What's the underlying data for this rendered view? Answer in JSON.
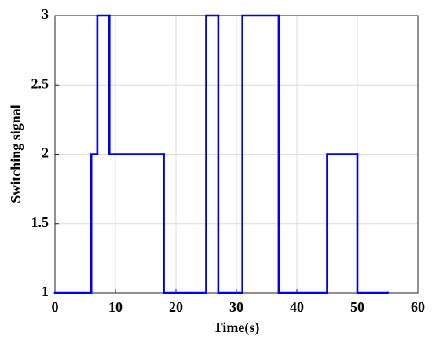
{
  "chart_data": {
    "type": "line",
    "step": "post",
    "xlabel": "Time(s)",
    "ylabel": "Switching signal",
    "x": [
      0,
      6,
      7,
      9,
      18,
      25,
      27,
      31,
      37,
      45,
      50,
      55
    ],
    "series": [
      {
        "color": "#0000ee",
        "values": [
          1,
          2,
          3,
          2,
          1,
          3,
          1,
          3,
          1,
          2,
          1,
          1
        ]
      }
    ],
    "xlim": [
      0,
      60
    ],
    "xticks": [
      0,
      10,
      20,
      30,
      40,
      50,
      60
    ],
    "ylim": [
      1,
      3
    ],
    "yticks": [
      1,
      1.5,
      2,
      2.5,
      3
    ],
    "grid": true
  }
}
